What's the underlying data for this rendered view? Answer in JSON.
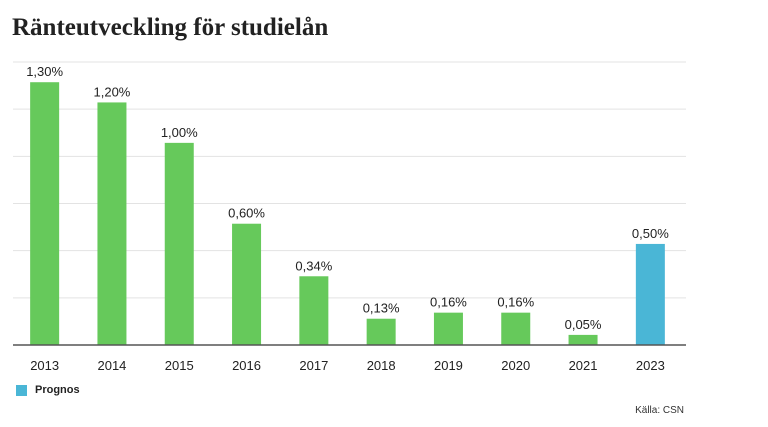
{
  "colors": {
    "actual": "#66c95b",
    "forecast": "#4ab6d6",
    "grid": "#e3e3e3",
    "axis": "#555555",
    "text": "#222222"
  },
  "legend": {
    "label": "Prognos"
  },
  "source": "Källa: CSN",
  "chart_data": {
    "type": "bar",
    "title": "Ränteutveckling för studielån",
    "categories": [
      "2013",
      "2014",
      "2015",
      "2016",
      "2017",
      "2018",
      "2019",
      "2020",
      "2021",
      "2023"
    ],
    "values": [
      1.3,
      1.2,
      1.0,
      0.6,
      0.34,
      0.13,
      0.16,
      0.16,
      0.05,
      0.5
    ],
    "value_labels": [
      "1,30%",
      "1,20%",
      "1,00%",
      "0,60%",
      "0,34%",
      "0,13%",
      "0,16%",
      "0,16%",
      "0,05%",
      "0,50%"
    ],
    "forecast": [
      false,
      false,
      false,
      false,
      false,
      false,
      false,
      false,
      false,
      true
    ],
    "xlabel": "",
    "ylabel": "",
    "ylim": [
      0,
      1.4
    ],
    "yticks": [
      0,
      0.233,
      0.467,
      0.7,
      0.933,
      1.167,
      1.4
    ],
    "grid": true,
    "legend_position": "bottom-left"
  }
}
